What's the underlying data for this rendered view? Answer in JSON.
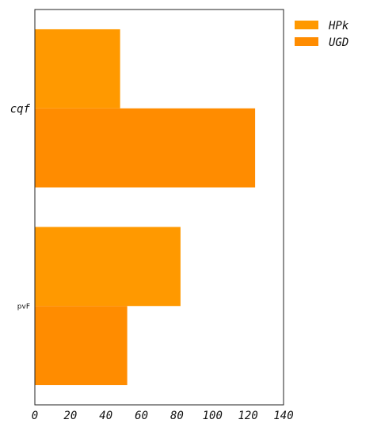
{
  "chart_data": {
    "type": "bar",
    "orientation": "horizontal",
    "categories": [
      "cqf",
      "pvF"
    ],
    "series": [
      {
        "name": "HPk",
        "values": [
          48,
          82
        ],
        "color": "#ff9900"
      },
      {
        "name": "UGD",
        "values": [
          124,
          52
        ],
        "color": "#ff8c00"
      }
    ],
    "xlim": [
      0,
      140
    ],
    "xticks": [
      0,
      20,
      40,
      60,
      80,
      100,
      120,
      140
    ],
    "xlabel": "",
    "ylabel": "",
    "title": "",
    "grid": false,
    "legend_position": "outside-top-right"
  }
}
